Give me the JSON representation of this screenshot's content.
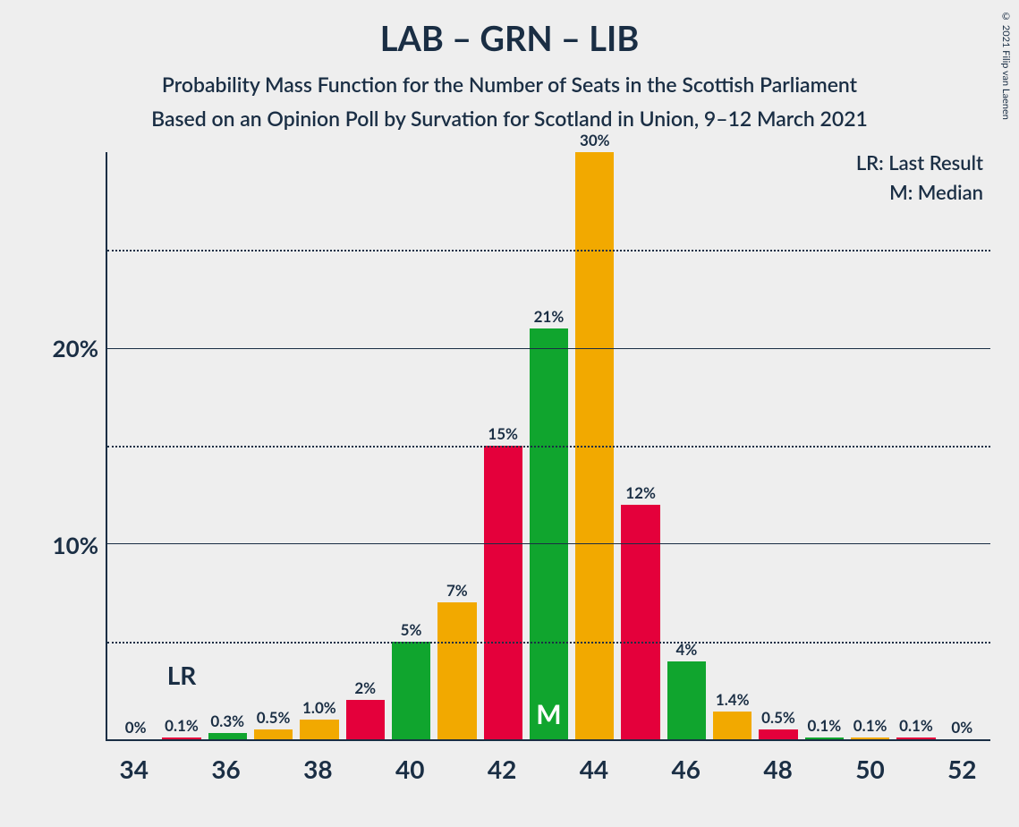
{
  "copyright": "© 2021 Filip van Laenen",
  "titles": {
    "main": "LAB – GRN – LIB",
    "sub1": "Probability Mass Function for the Number of Seats in the Scottish Parliament",
    "sub2": "Based on an Opinion Poll by Survation for Scotland in Union, 9–12 March 2021"
  },
  "legend": {
    "lr": "LR: Last Result",
    "m": "M: Median"
  },
  "chart": {
    "type": "bar",
    "background_color": "#eeeeee",
    "text_color": "#1a2e44",
    "axis_color": "#1a2e44",
    "grid_color": "#1a2e44",
    "y_max": 30,
    "y_ticks_major": [
      10,
      20
    ],
    "y_ticks_minor": [
      5,
      15,
      25
    ],
    "y_tick_labels": {
      "10": "10%",
      "20": "20%"
    },
    "x_ticks": [
      34,
      36,
      38,
      40,
      42,
      44,
      46,
      48,
      50,
      52
    ],
    "lr_position": 35,
    "lr_label": "LR",
    "median_index": 9,
    "median_label": "M",
    "palette": {
      "orange": "#f2a900",
      "red": "#e4003b",
      "green": "#10a52e"
    },
    "bars": [
      {
        "x": 34,
        "v": 0,
        "label": "0%",
        "color": "orange"
      },
      {
        "x": 35,
        "v": 0.1,
        "label": "0.1%",
        "color": "red"
      },
      {
        "x": 36,
        "v": 0.3,
        "label": "0.3%",
        "color": "green"
      },
      {
        "x": 37,
        "v": 0.5,
        "label": "0.5%",
        "color": "orange"
      },
      {
        "x": 38,
        "v": 1.0,
        "label": "1.0%",
        "color": "orange"
      },
      {
        "x": 39,
        "v": 2,
        "label": "2%",
        "color": "red"
      },
      {
        "x": 40,
        "v": 5,
        "label": "5%",
        "color": "green"
      },
      {
        "x": 41,
        "v": 7,
        "label": "7%",
        "color": "orange"
      },
      {
        "x": 42,
        "v": 15,
        "label": "15%",
        "color": "red"
      },
      {
        "x": 43,
        "v": 21,
        "label": "21%",
        "color": "green"
      },
      {
        "x": 44,
        "v": 30,
        "label": "30%",
        "color": "orange"
      },
      {
        "x": 45,
        "v": 12,
        "label": "12%",
        "color": "red"
      },
      {
        "x": 46,
        "v": 4,
        "label": "4%",
        "color": "green"
      },
      {
        "x": 47,
        "v": 1.4,
        "label": "1.4%",
        "color": "orange"
      },
      {
        "x": 48,
        "v": 0.5,
        "label": "0.5%",
        "color": "red"
      },
      {
        "x": 49,
        "v": 0.1,
        "label": "0.1%",
        "color": "green"
      },
      {
        "x": 50,
        "v": 0.1,
        "label": "0.1%",
        "color": "orange"
      },
      {
        "x": 51,
        "v": 0.1,
        "label": "0.1%",
        "color": "red"
      },
      {
        "x": 52,
        "v": 0,
        "label": "0%",
        "color": "green"
      }
    ]
  }
}
